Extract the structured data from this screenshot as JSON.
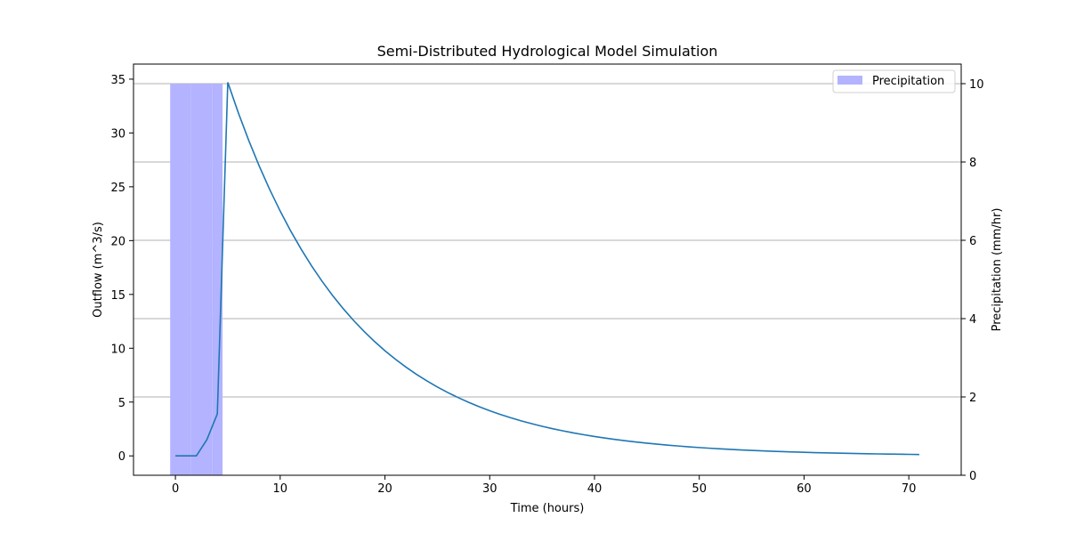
{
  "chart_data": {
    "type": "bar+line",
    "title": "Semi-Distributed Hydrological Model Simulation",
    "xlabel": "Time (hours)",
    "ylabel_left": "Outflow (m^3/s)",
    "ylabel_right": "Precipitation (mm/hr)",
    "xlim": [
      -4,
      75
    ],
    "ylim_left": [
      -1.8,
      36.4
    ],
    "ylim_right": [
      0,
      10.5
    ],
    "x_ticks": [
      0,
      10,
      20,
      30,
      40,
      50,
      60,
      70
    ],
    "y_ticks_left": [
      0,
      5,
      10,
      15,
      20,
      25,
      30,
      35
    ],
    "y_ticks_right": [
      0,
      2,
      4,
      6,
      8,
      10
    ],
    "grid": "horizontal lines at right-axis ticks",
    "legend": {
      "position": "top-right",
      "entries": [
        "Precipitation"
      ]
    },
    "colors": {
      "precipitation": "#b3b3ff",
      "outflow": "#1f77b4"
    },
    "series": [
      {
        "name": "Precipitation",
        "axis": "right",
        "kind": "bar",
        "x": [
          0,
          1,
          2,
          3,
          4
        ],
        "values": [
          10,
          10,
          10,
          10,
          10
        ]
      },
      {
        "axis": "left",
        "kind": "line",
        "peak_x": 5,
        "peak_y": 34.7,
        "rising_x": [
          0,
          1,
          2,
          3,
          4,
          5
        ],
        "rising_y": [
          0,
          0,
          0,
          1.5,
          3.9,
          34.7
        ],
        "recession_decay_per_hour": 0.0845,
        "x_end": 71
      }
    ]
  }
}
